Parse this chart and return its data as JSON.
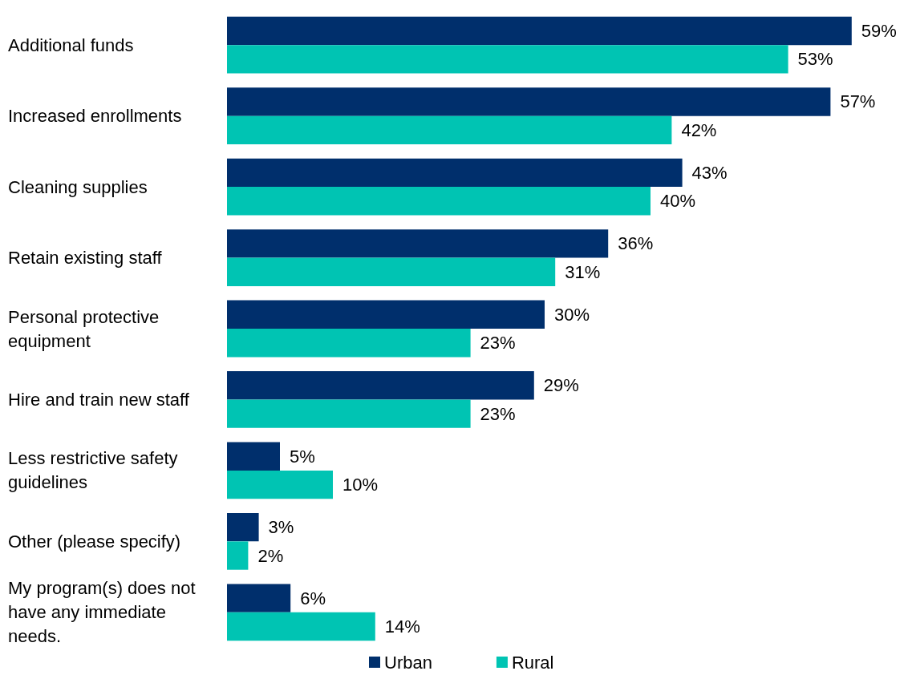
{
  "chart_data": {
    "type": "bar",
    "orientation": "horizontal",
    "categories": [
      "Additional funds",
      "Increased enrollments",
      "Cleaning supplies",
      "Retain existing staff",
      "Personal protective equipment",
      "Hire and train new staff",
      "Less restrictive safety guidelines",
      "Other (please specify)",
      "My program(s) does not have any immediate needs."
    ],
    "series": [
      {
        "name": "Urban",
        "color": "#002f6c",
        "values": [
          59,
          57,
          43,
          36,
          30,
          29,
          5,
          3,
          6
        ],
        "value_labels": [
          "59%",
          "57%",
          "43%",
          "36%",
          "30%",
          "29%",
          "5%",
          "3%",
          "6%"
        ]
      },
      {
        "name": "Rural",
        "color": "#00c4b3",
        "values": [
          53,
          42,
          40,
          31,
          23,
          23,
          10,
          2,
          14
        ],
        "value_labels": [
          "53%",
          "42%",
          "40%",
          "31%",
          "23%",
          "23%",
          "10%",
          "2%",
          "14%"
        ]
      }
    ],
    "legend": "bottom",
    "grid": false
  }
}
